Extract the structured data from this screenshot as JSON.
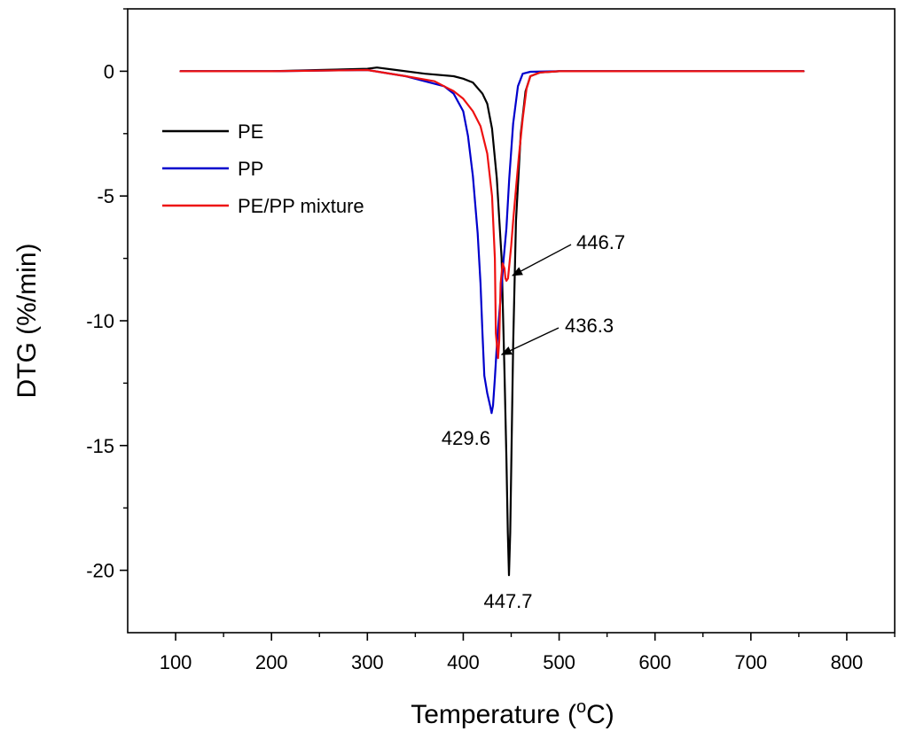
{
  "chart_data": {
    "type": "line",
    "title": "",
    "xlabel": "Temperature (",
    "xlabel_unit_sup": "o",
    "xlabel_unit": "C)",
    "ylabel": "DTG (%/min)",
    "xlim": [
      50,
      850
    ],
    "ylim": [
      -22.5,
      2.5
    ],
    "xticks": [
      100,
      200,
      300,
      400,
      500,
      600,
      700,
      800
    ],
    "xtick_labels": [
      "100",
      "200",
      "300",
      "400",
      "500",
      "600",
      "700",
      "800"
    ],
    "yticks": [
      0,
      -5,
      -10,
      -15,
      -20
    ],
    "ytick_labels": [
      "0",
      "-5",
      "-10",
      "-15",
      "-20"
    ],
    "grid": false,
    "legend_position": "upper-left",
    "series": [
      {
        "name": "PE",
        "color": "#000000",
        "x": [
          105,
          150,
          200,
          250,
          300,
          310,
          330,
          360,
          390,
          400,
          410,
          420,
          425,
          430,
          435,
          440,
          443,
          445,
          446.5,
          447.7,
          449,
          450,
          452,
          455,
          460,
          465,
          470,
          480,
          500,
          600,
          700,
          755
        ],
        "y": [
          0,
          0,
          0,
          0.05,
          0.1,
          0.15,
          0.05,
          -0.1,
          -0.2,
          -0.3,
          -0.45,
          -0.9,
          -1.3,
          -2.3,
          -4.3,
          -7.5,
          -12,
          -15.5,
          -18.5,
          -20.2,
          -18.5,
          -16,
          -11,
          -6,
          -2.5,
          -0.8,
          -0.2,
          -0.05,
          0,
          0,
          0,
          0
        ]
      },
      {
        "name": "PP",
        "color": "#0000cc",
        "x": [
          105,
          200,
          300,
          340,
          360,
          380,
          390,
          400,
          405,
          410,
          415,
          418,
          420,
          422,
          425,
          428,
          429.6,
          431,
          433,
          435,
          437,
          440,
          442,
          445,
          448,
          452,
          457,
          462,
          470,
          500,
          600,
          700,
          755
        ],
        "y": [
          0,
          0,
          0.05,
          -0.2,
          -0.4,
          -0.6,
          -0.9,
          -1.6,
          -2.6,
          -4.2,
          -6.5,
          -8.5,
          -10.5,
          -12.2,
          -12.9,
          -13.4,
          -13.7,
          -13.4,
          -12.3,
          -11,
          -10,
          -8.6,
          -7.6,
          -6.3,
          -4.3,
          -2.1,
          -0.6,
          -0.1,
          -0.02,
          0,
          0,
          0,
          0
        ]
      },
      {
        "name": "PE/PP mixture",
        "color": "#ee1111",
        "x": [
          105,
          200,
          300,
          340,
          370,
          390,
          400,
          410,
          418,
          425,
          430,
          433,
          434,
          436.3,
          437.5,
          439,
          441,
          443,
          444,
          445,
          446.7,
          448,
          450,
          452,
          455,
          458,
          462,
          466,
          470,
          480,
          500,
          600,
          700,
          755
        ],
        "y": [
          0,
          0,
          0.05,
          -0.2,
          -0.4,
          -0.8,
          -1.1,
          -1.6,
          -2.2,
          -3.3,
          -5,
          -7.5,
          -10.5,
          -11.5,
          -10.8,
          -8.5,
          -7.7,
          -7.9,
          -8.3,
          -8.4,
          -8.3,
          -7.8,
          -7,
          -6,
          -4.7,
          -3.4,
          -1.9,
          -0.7,
          -0.2,
          -0.05,
          0,
          0,
          0,
          0
        ]
      }
    ],
    "annotations": [
      {
        "label": "447.7",
        "x": 447.7,
        "y": -20.2
      },
      {
        "label": "429.6",
        "x": 429.6,
        "y": -13.7
      },
      {
        "label": "436.3",
        "x": 436.3,
        "y": -11.5,
        "arrow": true
      },
      {
        "label": "446.7",
        "x": 446.7,
        "y": -8.4,
        "arrow": true
      }
    ]
  }
}
